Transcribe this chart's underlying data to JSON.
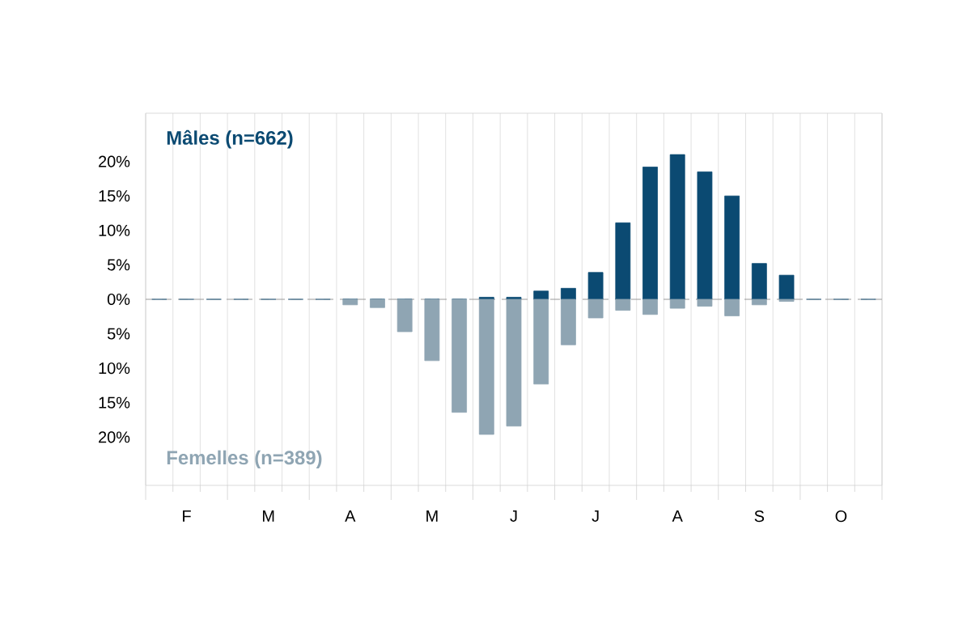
{
  "chart_data": {
    "type": "bar",
    "categories": [
      null,
      "F",
      null,
      null,
      "M",
      null,
      null,
      "A",
      null,
      null,
      "M",
      null,
      null,
      "J",
      null,
      null,
      "J",
      null,
      null,
      "A",
      null,
      null,
      "S",
      null,
      null,
      "O",
      null
    ],
    "series": [
      {
        "name": "Mâles (n=662)",
        "color": "#0b4a72",
        "values": [
          0,
          0,
          0,
          0,
          0,
          0,
          0,
          0,
          0,
          0,
          0,
          0,
          0.3,
          0.3,
          1.2,
          1.6,
          3.9,
          11.1,
          19.2,
          21.0,
          18.5,
          15.0,
          5.2,
          3.5,
          0,
          0,
          0
        ]
      },
      {
        "name": "Femelles (n=389)",
        "color": "#8fa5b3",
        "values": [
          0,
          0,
          0,
          0,
          0,
          0,
          0,
          -0.8,
          -1.2,
          -4.7,
          -8.9,
          -16.4,
          -19.6,
          -18.4,
          -12.3,
          -6.6,
          -2.7,
          -1.6,
          -2.2,
          -1.3,
          -1.0,
          -2.4,
          -0.8,
          -0.3,
          0,
          0,
          0
        ]
      }
    ],
    "ylim": [
      -27,
      27
    ],
    "yticks": [
      {
        "value": 20,
        "label": "20%"
      },
      {
        "value": 15,
        "label": "15%"
      },
      {
        "value": 10,
        "label": "10%"
      },
      {
        "value": 5,
        "label": "5%"
      },
      {
        "value": 0,
        "label": "0%"
      },
      {
        "value": -5,
        "label": "5%"
      },
      {
        "value": -10,
        "label": "10%"
      },
      {
        "value": -15,
        "label": "15%"
      },
      {
        "value": -20,
        "label": "20%"
      }
    ],
    "ref_lines": [
      {
        "axis": "y",
        "value": 0,
        "color": "#999999",
        "line_style": "dashed"
      }
    ],
    "grid": "x"
  }
}
